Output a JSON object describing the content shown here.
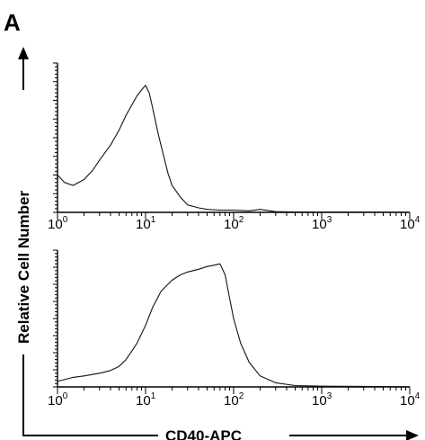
{
  "figure": {
    "panel_label": "A",
    "colors": {
      "foreground": "#000000",
      "background": "#ffffff"
    }
  },
  "chart_data": [
    {
      "type": "line",
      "title": "",
      "xlabel": "CD40-APC",
      "ylabel": "Relative Cell Number",
      "x_scale": "log",
      "xlim": [
        1,
        10000
      ],
      "ylim": [
        0,
        1
      ],
      "x_ticks": [
        {
          "base": "10",
          "exp": "0"
        },
        {
          "base": "10",
          "exp": "1"
        },
        {
          "base": "10",
          "exp": "2"
        },
        {
          "base": "10",
          "exp": "3"
        },
        {
          "base": "10",
          "exp": "4"
        }
      ],
      "series": [
        {
          "x": [
            1,
            1.2,
            1.5,
            2,
            2.5,
            3,
            4,
            5,
            6,
            7,
            8,
            9,
            10,
            11,
            12,
            14,
            16,
            18,
            20,
            25,
            30,
            40,
            50,
            70,
            100,
            150,
            200,
            300,
            500,
            1000,
            10000
          ],
          "y": [
            0.25,
            0.2,
            0.18,
            0.22,
            0.28,
            0.35,
            0.45,
            0.55,
            0.65,
            0.72,
            0.78,
            0.82,
            0.85,
            0.8,
            0.7,
            0.52,
            0.38,
            0.26,
            0.18,
            0.1,
            0.05,
            0.03,
            0.02,
            0.015,
            0.015,
            0.01,
            0.02,
            0.005,
            0.003,
            0.002,
            0.001
          ]
        }
      ]
    },
    {
      "type": "line",
      "title": "",
      "xlabel": "CD40-APC",
      "ylabel": "Relative Cell Number",
      "x_scale": "log",
      "xlim": [
        1,
        10000
      ],
      "ylim": [
        0,
        1
      ],
      "x_ticks": [
        {
          "base": "10",
          "exp": "0"
        },
        {
          "base": "10",
          "exp": "1"
        },
        {
          "base": "10",
          "exp": "2"
        },
        {
          "base": "10",
          "exp": "3"
        },
        {
          "base": "10",
          "exp": "4"
        }
      ],
      "series": [
        {
          "x": [
            1,
            1.5,
            2,
            3,
            4,
            5,
            6,
            8,
            10,
            12,
            15,
            20,
            25,
            30,
            40,
            50,
            60,
            70,
            80,
            90,
            100,
            120,
            150,
            200,
            300,
            500,
            1000,
            10000
          ],
          "y": [
            0.04,
            0.07,
            0.08,
            0.1,
            0.12,
            0.15,
            0.2,
            0.32,
            0.45,
            0.58,
            0.7,
            0.78,
            0.82,
            0.84,
            0.86,
            0.88,
            0.89,
            0.9,
            0.82,
            0.65,
            0.5,
            0.32,
            0.18,
            0.08,
            0.03,
            0.01,
            0.005,
            0.001
          ]
        }
      ]
    }
  ]
}
